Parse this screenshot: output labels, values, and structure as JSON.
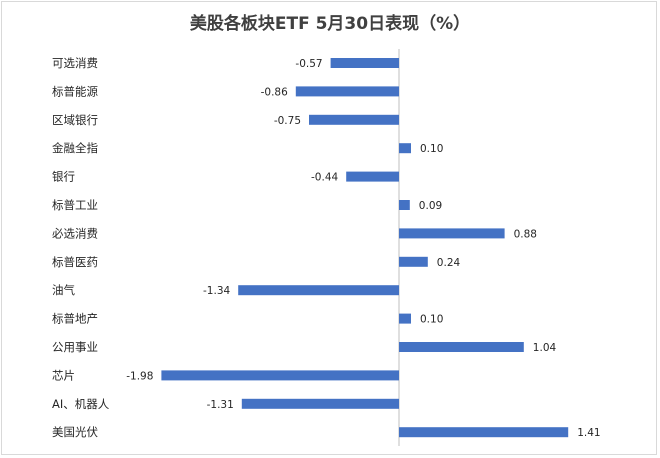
{
  "chart_data": {
    "type": "bar",
    "orientation": "horizontal",
    "title": "美股各板块ETF 5月30日表现（%）",
    "categories": [
      "可选消费",
      "标普能源",
      "区域银行",
      "金融全指",
      "银行",
      "标普工业",
      "必选消费",
      "标普医药",
      "油气",
      "标普地产",
      "公用事业",
      "芯片",
      "AI、机器人",
      "美国光伏"
    ],
    "values": [
      -0.57,
      -0.86,
      -0.75,
      0.1,
      -0.44,
      0.09,
      0.88,
      0.24,
      -1.34,
      0.1,
      1.04,
      -1.98,
      -1.31,
      1.41
    ],
    "value_labels": [
      "-0.57",
      "-0.86",
      "-0.75",
      "0.10",
      "-0.44",
      "0.09",
      "0.88",
      "0.24",
      "-1.34",
      "0.10",
      "1.04",
      "-1.98",
      "-1.31",
      "1.41"
    ],
    "bar_color": "#4472c4",
    "data_labels": true,
    "grid": false,
    "legend": "none"
  }
}
